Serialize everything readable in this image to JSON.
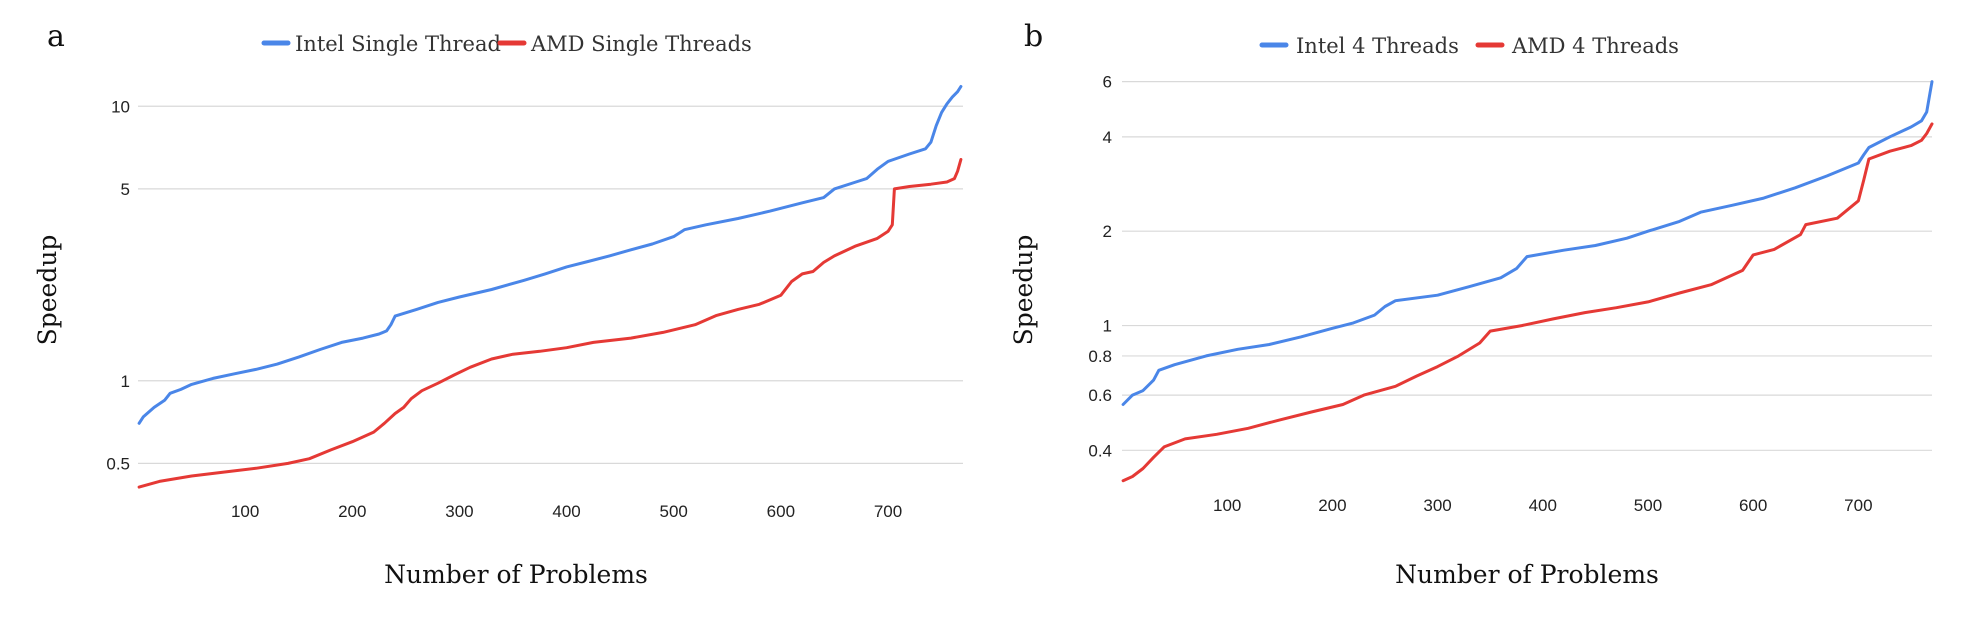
{
  "colors": {
    "intel": "#4a86e8",
    "amd": "#e53935",
    "grid": "#d9d9d9"
  },
  "chart_data": [
    {
      "panel": "a",
      "type": "line",
      "yscale": "log",
      "xlabel": "Number of Problems",
      "ylabel": "Speedup",
      "xlim": [
        0,
        770
      ],
      "ylim": [
        0.4,
        13
      ],
      "x_ticks": [
        100,
        200,
        300,
        400,
        500,
        600,
        700
      ],
      "y_ticks": [
        0.5,
        1,
        5,
        10
      ],
      "y_tick_labels": [
        "0.5",
        "1",
        "5",
        "10"
      ],
      "grid": true,
      "legend_position": "top",
      "series": [
        {
          "name": "Intel Single Thread",
          "color_key": "intel",
          "points": [
            [
              1,
              0.7
            ],
            [
              5,
              0.74
            ],
            [
              15,
              0.8
            ],
            [
              25,
              0.85
            ],
            [
              30,
              0.9
            ],
            [
              40,
              0.93
            ],
            [
              50,
              0.97
            ],
            [
              70,
              1.02
            ],
            [
              90,
              1.06
            ],
            [
              110,
              1.1
            ],
            [
              130,
              1.15
            ],
            [
              150,
              1.22
            ],
            [
              170,
              1.3
            ],
            [
              190,
              1.38
            ],
            [
              210,
              1.43
            ],
            [
              225,
              1.48
            ],
            [
              232,
              1.52
            ],
            [
              236,
              1.6
            ],
            [
              240,
              1.72
            ],
            [
              260,
              1.82
            ],
            [
              280,
              1.93
            ],
            [
              300,
              2.02
            ],
            [
              330,
              2.15
            ],
            [
              360,
              2.32
            ],
            [
              380,
              2.45
            ],
            [
              400,
              2.6
            ],
            [
              420,
              2.72
            ],
            [
              440,
              2.85
            ],
            [
              460,
              3.0
            ],
            [
              480,
              3.15
            ],
            [
              500,
              3.35
            ],
            [
              510,
              3.55
            ],
            [
              530,
              3.7
            ],
            [
              560,
              3.9
            ],
            [
              590,
              4.15
            ],
            [
              620,
              4.45
            ],
            [
              640,
              4.65
            ],
            [
              650,
              5.0
            ],
            [
              670,
              5.3
            ],
            [
              680,
              5.45
            ],
            [
              690,
              5.9
            ],
            [
              700,
              6.3
            ],
            [
              720,
              6.7
            ],
            [
              735,
              7.0
            ],
            [
              740,
              7.4
            ],
            [
              745,
              8.5
            ],
            [
              750,
              9.5
            ],
            [
              755,
              10.2
            ],
            [
              760,
              10.8
            ],
            [
              765,
              11.3
            ],
            [
              768,
              11.8
            ]
          ]
        },
        {
          "name": "AMD Single Threads",
          "color_key": "amd",
          "points": [
            [
              1,
              0.41
            ],
            [
              20,
              0.43
            ],
            [
              50,
              0.45
            ],
            [
              80,
              0.465
            ],
            [
              110,
              0.48
            ],
            [
              140,
              0.5
            ],
            [
              160,
              0.52
            ],
            [
              180,
              0.56
            ],
            [
              200,
              0.6
            ],
            [
              220,
              0.65
            ],
            [
              230,
              0.7
            ],
            [
              240,
              0.76
            ],
            [
              248,
              0.8
            ],
            [
              255,
              0.86
            ],
            [
              265,
              0.92
            ],
            [
              280,
              0.98
            ],
            [
              295,
              1.05
            ],
            [
              310,
              1.12
            ],
            [
              330,
              1.2
            ],
            [
              350,
              1.25
            ],
            [
              375,
              1.28
            ],
            [
              400,
              1.32
            ],
            [
              425,
              1.38
            ],
            [
              460,
              1.43
            ],
            [
              490,
              1.5
            ],
            [
              520,
              1.6
            ],
            [
              540,
              1.73
            ],
            [
              560,
              1.82
            ],
            [
              580,
              1.9
            ],
            [
              600,
              2.05
            ],
            [
              610,
              2.3
            ],
            [
              620,
              2.45
            ],
            [
              630,
              2.5
            ],
            [
              640,
              2.7
            ],
            [
              650,
              2.85
            ],
            [
              670,
              3.1
            ],
            [
              690,
              3.3
            ],
            [
              700,
              3.5
            ],
            [
              704,
              3.7
            ],
            [
              706,
              5.0
            ],
            [
              720,
              5.1
            ],
            [
              740,
              5.2
            ],
            [
              755,
              5.3
            ],
            [
              762,
              5.45
            ],
            [
              765,
              5.8
            ],
            [
              768,
              6.4
            ]
          ]
        }
      ]
    },
    {
      "panel": "b",
      "type": "line",
      "yscale": "log",
      "xlabel": "Number of Problems",
      "ylabel": "Speedup",
      "xlim": [
        0,
        770
      ],
      "ylim": [
        0.31,
        6.3
      ],
      "x_ticks": [
        100,
        200,
        300,
        400,
        500,
        600,
        700
      ],
      "y_ticks": [
        0.4,
        0.6,
        0.8,
        1,
        2,
        4,
        6
      ],
      "y_tick_labels": [
        "0.4",
        "0.6",
        "0.8",
        "1",
        "2",
        "4",
        "6"
      ],
      "grid": true,
      "legend_position": "top",
      "series": [
        {
          "name": "Intel 4 Threads",
          "color_key": "intel",
          "points": [
            [
              1,
              0.56
            ],
            [
              10,
              0.6
            ],
            [
              20,
              0.62
            ],
            [
              30,
              0.67
            ],
            [
              35,
              0.72
            ],
            [
              50,
              0.75
            ],
            [
              80,
              0.8
            ],
            [
              110,
              0.84
            ],
            [
              140,
              0.87
            ],
            [
              170,
              0.92
            ],
            [
              200,
              0.98
            ],
            [
              220,
              1.02
            ],
            [
              240,
              1.08
            ],
            [
              250,
              1.15
            ],
            [
              260,
              1.2
            ],
            [
              300,
              1.25
            ],
            [
              330,
              1.33
            ],
            [
              360,
              1.42
            ],
            [
              375,
              1.52
            ],
            [
              385,
              1.66
            ],
            [
              420,
              1.74
            ],
            [
              450,
              1.8
            ],
            [
              480,
              1.9
            ],
            [
              500,
              2.0
            ],
            [
              530,
              2.15
            ],
            [
              550,
              2.3
            ],
            [
              580,
              2.42
            ],
            [
              610,
              2.55
            ],
            [
              640,
              2.75
            ],
            [
              670,
              3.0
            ],
            [
              700,
              3.3
            ],
            [
              705,
              3.5
            ],
            [
              710,
              3.7
            ],
            [
              730,
              4.0
            ],
            [
              750,
              4.3
            ],
            [
              760,
              4.5
            ],
            [
              765,
              4.8
            ],
            [
              768,
              5.5
            ],
            [
              770,
              6.0
            ]
          ]
        },
        {
          "name": "AMD 4 Threads",
          "color_key": "amd",
          "points": [
            [
              1,
              0.32
            ],
            [
              10,
              0.33
            ],
            [
              20,
              0.35
            ],
            [
              30,
              0.38
            ],
            [
              40,
              0.41
            ],
            [
              60,
              0.435
            ],
            [
              90,
              0.45
            ],
            [
              120,
              0.47
            ],
            [
              150,
              0.5
            ],
            [
              180,
              0.53
            ],
            [
              210,
              0.56
            ],
            [
              230,
              0.6
            ],
            [
              260,
              0.64
            ],
            [
              280,
              0.69
            ],
            [
              300,
              0.74
            ],
            [
              320,
              0.8
            ],
            [
              340,
              0.88
            ],
            [
              350,
              0.96
            ],
            [
              380,
              1.0
            ],
            [
              410,
              1.05
            ],
            [
              440,
              1.1
            ],
            [
              470,
              1.14
            ],
            [
              500,
              1.19
            ],
            [
              530,
              1.27
            ],
            [
              560,
              1.35
            ],
            [
              590,
              1.5
            ],
            [
              600,
              1.68
            ],
            [
              620,
              1.75
            ],
            [
              645,
              1.95
            ],
            [
              650,
              2.1
            ],
            [
              680,
              2.2
            ],
            [
              700,
              2.5
            ],
            [
              705,
              2.9
            ],
            [
              710,
              3.4
            ],
            [
              730,
              3.6
            ],
            [
              750,
              3.75
            ],
            [
              760,
              3.9
            ],
            [
              765,
              4.1
            ],
            [
              770,
              4.4
            ]
          ]
        }
      ]
    }
  ]
}
